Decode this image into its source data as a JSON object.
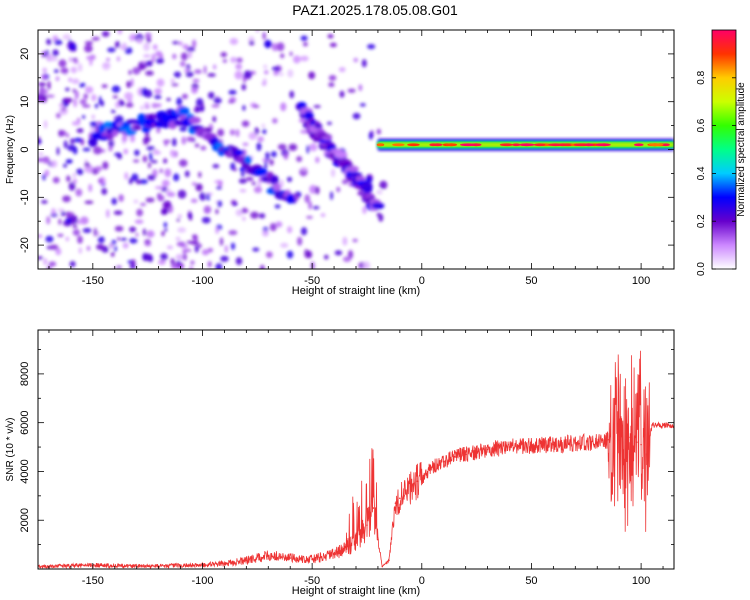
{
  "figure": {
    "title": "PAZ1.2025.178.05.08.G01"
  },
  "chart_data": [
    {
      "type": "heatmap",
      "xlabel": "Height of straight line (km)",
      "ylabel": "Frequency (Hz)",
      "xlim": [
        -175,
        115
      ],
      "ylim": [
        -25,
        25
      ],
      "x_ticks": [
        -150,
        -100,
        -50,
        0,
        50,
        100
      ],
      "y_ticks": [
        -20,
        -10,
        0,
        10,
        20
      ],
      "colorbar": {
        "label": "Normalized spectral amplitude",
        "range": [
          0,
          1
        ],
        "ticks": [
          "0.0",
          "0.2",
          "0.4",
          "0.6",
          "0.8"
        ],
        "colors": [
          "#ffffff",
          "#cc88ff",
          "#6600cc",
          "#0000ff",
          "#00ccff",
          "#00ff88",
          "#33ff00",
          "#ccff00",
          "#ffcc00",
          "#ff3300",
          "#ff0066"
        ]
      },
      "features": [
        {
          "name": "carrier",
          "x": [
            -20,
            115
          ],
          "freq": 1,
          "amplitude": 0.85
        },
        {
          "name": "multipath-arc-1",
          "x": [
            -150,
            -60
          ],
          "freq_start": 3,
          "freq_peak": 7,
          "freq_end": -10,
          "amplitude": 0.3
        },
        {
          "name": "multipath-arc-2",
          "x": [
            -55,
            -20
          ],
          "freq_start": 8,
          "freq_end": -12,
          "amplitude": 0.25
        }
      ]
    },
    {
      "type": "line",
      "xlabel": "Height of straight line (km)",
      "ylabel": "SNR (10 * v/v)",
      "xlim": [
        -175,
        115
      ],
      "ylim": [
        0,
        9800
      ],
      "x_ticks": [
        -150,
        -100,
        -50,
        0,
        50,
        100
      ],
      "y_ticks": [
        2000,
        4000,
        6000,
        8000
      ],
      "series": [
        {
          "color": "#ee3333",
          "x": [
            -175,
            -150,
            -125,
            -100,
            -90,
            -80,
            -70,
            -60,
            -50,
            -40,
            -30,
            -25,
            -22,
            -20,
            -18,
            -15,
            -12,
            -10,
            -8,
            -5,
            -2,
            0,
            2,
            5,
            10,
            15,
            20,
            25,
            30,
            40,
            50,
            60,
            70,
            80,
            85,
            90,
            95,
            98,
            100,
            103,
            105,
            110,
            115
          ],
          "values": [
            100,
            150,
            120,
            160,
            220,
            350,
            550,
            450,
            400,
            600,
            1100,
            1800,
            2500,
            1200,
            100,
            350,
            2700,
            2900,
            3000,
            3400,
            3600,
            3700,
            3900,
            4200,
            4400,
            4600,
            4700,
            4800,
            4900,
            5000,
            5050,
            5100,
            5150,
            5200,
            5300,
            5300,
            5400,
            5200,
            5100,
            5000,
            5900,
            5900,
            5850
          ]
        }
      ]
    }
  ]
}
